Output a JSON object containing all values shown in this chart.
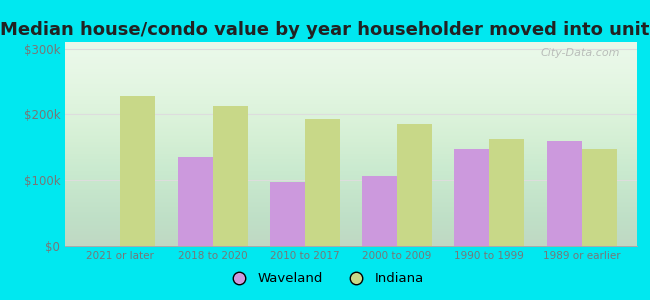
{
  "title": "Median house/condo value by year householder moved into unit",
  "categories": [
    "2021 or later",
    "2018 to 2020",
    "2010 to 2017",
    "2000 to 2009",
    "1990 to 1999",
    "1989 or earlier"
  ],
  "waveland": [
    null,
    135000,
    97000,
    107000,
    148000,
    160000
  ],
  "indiana": [
    228000,
    213000,
    193000,
    186000,
    163000,
    148000
  ],
  "waveland_color": "#cc99dd",
  "indiana_color": "#c8d888",
  "bg_outer": "#00e8f0",
  "bg_chart_top": "#e8f8e8",
  "bg_chart_bottom": "#d0ecc8",
  "yticks": [
    0,
    100000,
    200000,
    300000
  ],
  "ylabels": [
    "$0",
    "$100k",
    "$200k",
    "$300k"
  ],
  "ylim": [
    0,
    310000
  ],
  "bar_width": 0.38,
  "watermark": "City-Data.com",
  "legend_waveland": "Waveland",
  "legend_indiana": "Indiana",
  "title_fontsize": 13,
  "axis_label_color": "#777777",
  "grid_color": "#dddddd"
}
